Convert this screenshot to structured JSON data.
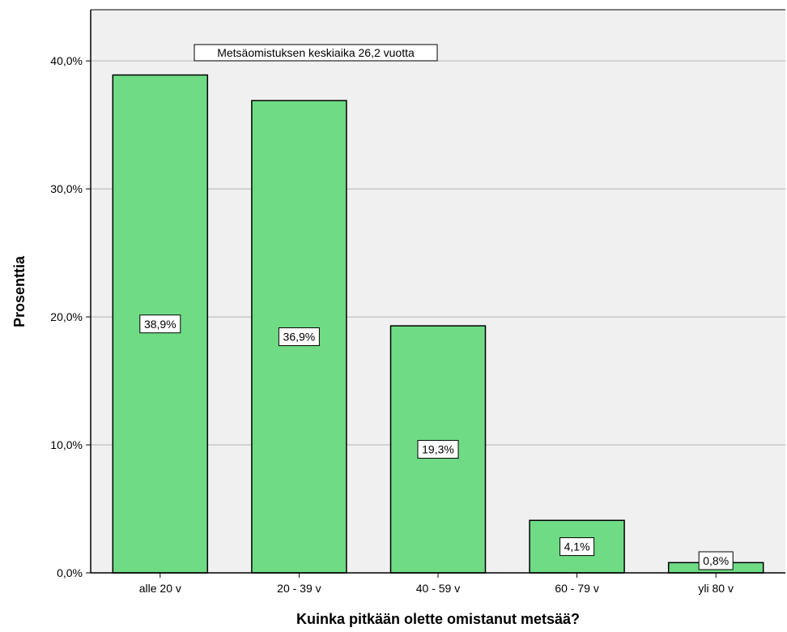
{
  "chart_data": {
    "type": "bar",
    "categories": [
      "alle 20 v",
      "20 - 39 v",
      "40 - 59 v",
      "60 - 79 v",
      "yli 80 v"
    ],
    "values": [
      38.9,
      36.9,
      19.3,
      4.1,
      0.8
    ],
    "data_labels": [
      "38,9%",
      "36,9%",
      "19,3%",
      "4,1%",
      "0,8%"
    ],
    "title": "",
    "xlabel": "Kuinka pitkään olette omistanut metsää?",
    "ylabel": "Prosenttia",
    "ylim": [
      0,
      44
    ],
    "yticks": [
      0,
      10,
      20,
      30,
      40
    ],
    "ytick_labels": [
      "0,0%",
      "10,0%",
      "20,0%",
      "30,0%",
      "40,0%"
    ],
    "grid": true,
    "annotation": "Metsäomistuksen keskiaika 26,2 vuotta",
    "colors": {
      "plot_background": "#f0f0f0",
      "bar_fill": "#6fdc85",
      "bar_stroke": "#000000",
      "grid": "#b4b4b4",
      "label_box": "#ffffff"
    }
  }
}
